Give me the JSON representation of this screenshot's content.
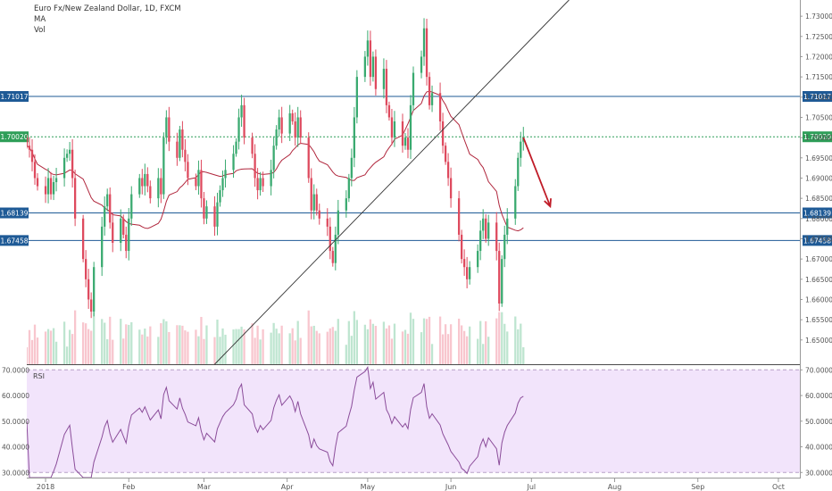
{
  "chart_data": {
    "type": "candlestick",
    "header": {
      "title": "Euro Fx/New Zealand Dollar, 1D, FXCM",
      "indicators": [
        "MA",
        "Vol"
      ]
    },
    "price_axis": {
      "ylim": [
        1.644,
        1.734
      ],
      "ticks": [
        1.65,
        1.655,
        1.66,
        1.665,
        1.67,
        1.675,
        1.68,
        1.685,
        1.69,
        1.695,
        1.7,
        1.705,
        1.71,
        1.715,
        1.72,
        1.725,
        1.73
      ],
      "tick_labels": [
        "1.65000",
        "1.65500",
        "1.66000",
        "1.66500",
        "1.67000",
        "1.67500",
        "1.68000",
        "1.68500",
        "1.69000",
        "1.69500",
        "1.70000",
        "1.70500",
        "1.71000",
        "1.71500",
        "1.72000",
        "1.72500",
        "1.73000"
      ]
    },
    "horizontal_levels": [
      {
        "value": 1.71017,
        "label": "1.71017",
        "style": "solid",
        "color": "#1e5a96"
      },
      {
        "value": 1.68139,
        "label": "1.68139",
        "style": "solid",
        "color": "#1e5a96"
      },
      {
        "value": 1.67458,
        "label": "1.67458",
        "style": "solid",
        "color": "#1e5a96"
      },
      {
        "value": 1.7002,
        "label": "1.70020",
        "style": "dotted",
        "color": "#2e9e58"
      }
    ],
    "trendline": {
      "from": [
        "2018-03-05",
        1.644
      ],
      "to": [
        "2018-07-15",
        1.734
      ]
    },
    "arrow": {
      "from": [
        "2018-06-28",
        1.7
      ],
      "to": [
        "2018-07-08",
        1.683
      ],
      "color": "#c01c28"
    },
    "time_axis": {
      "labels": [
        "2018",
        "Feb",
        "Mar",
        "Apr",
        "May",
        "Jun",
        "Jul",
        "Aug",
        "Sep",
        "Oct"
      ],
      "dates": [
        "2018-01-01",
        "2018-02-01",
        "2018-03-01",
        "2018-04-01",
        "2018-05-01",
        "2018-06-01",
        "2018-07-01",
        "2018-08-01",
        "2018-09-01",
        "2018-10-01"
      ],
      "start": "2017-12-25",
      "end": "2018-10-09"
    },
    "candles": [
      {
        "date": "2017-12-25",
        "close": 1.698
      },
      {
        "date": "2017-12-26",
        "close": 1.697
      },
      {
        "date": "2017-12-27",
        "close": 1.694
      },
      {
        "date": "2017-12-28",
        "close": 1.69
      },
      {
        "date": "2017-12-29",
        "close": 1.688
      },
      {
        "date": "2018-01-01",
        "close": 1.686
      },
      {
        "date": "2018-01-02",
        "close": 1.69
      },
      {
        "date": "2018-01-03",
        "close": 1.686
      },
      {
        "date": "2018-01-04",
        "close": 1.689
      },
      {
        "date": "2018-01-05",
        "close": 1.69
      },
      {
        "date": "2018-01-08",
        "close": 1.695
      },
      {
        "date": "2018-01-09",
        "close": 1.696
      },
      {
        "date": "2018-01-10",
        "close": 1.697
      },
      {
        "date": "2018-01-11",
        "close": 1.69
      },
      {
        "date": "2018-01-12",
        "close": 1.68
      },
      {
        "date": "2018-01-15",
        "close": 1.67
      },
      {
        "date": "2018-01-16",
        "close": 1.665
      },
      {
        "date": "2018-01-17",
        "close": 1.66
      },
      {
        "date": "2018-01-18",
        "close": 1.657
      },
      {
        "date": "2018-01-19",
        "close": 1.668
      },
      {
        "date": "2018-01-22",
        "close": 1.678
      },
      {
        "date": "2018-01-23",
        "close": 1.683
      },
      {
        "date": "2018-01-24",
        "close": 1.686
      },
      {
        "date": "2018-01-25",
        "close": 1.679
      },
      {
        "date": "2018-01-26",
        "close": 1.674
      },
      {
        "date": "2018-01-29",
        "close": 1.68
      },
      {
        "date": "2018-01-30",
        "close": 1.676
      },
      {
        "date": "2018-01-31",
        "close": 1.672
      },
      {
        "date": "2018-02-01",
        "close": 1.68
      },
      {
        "date": "2018-02-02",
        "close": 1.686
      },
      {
        "date": "2018-02-05",
        "close": 1.69
      },
      {
        "date": "2018-02-06",
        "close": 1.688
      },
      {
        "date": "2018-02-07",
        "close": 1.691
      },
      {
        "date": "2018-02-08",
        "close": 1.688
      },
      {
        "date": "2018-02-09",
        "close": 1.685
      },
      {
        "date": "2018-02-12",
        "close": 1.69
      },
      {
        "date": "2018-02-13",
        "close": 1.686
      },
      {
        "date": "2018-02-14",
        "close": 1.7
      },
      {
        "date": "2018-02-15",
        "close": 1.705
      },
      {
        "date": "2018-02-16",
        "close": 1.699
      },
      {
        "date": "2018-02-19",
        "close": 1.695
      },
      {
        "date": "2018-02-20",
        "close": 1.702
      },
      {
        "date": "2018-02-21",
        "close": 1.697
      },
      {
        "date": "2018-02-22",
        "close": 1.694
      },
      {
        "date": "2018-02-23",
        "close": 1.69
      },
      {
        "date": "2018-02-26",
        "close": 1.688
      },
      {
        "date": "2018-02-27",
        "close": 1.692
      },
      {
        "date": "2018-02-28",
        "close": 1.685
      },
      {
        "date": "2018-03-01",
        "close": 1.68
      },
      {
        "date": "2018-03-02",
        "close": 1.683
      },
      {
        "date": "2018-03-05",
        "close": 1.678
      },
      {
        "date": "2018-03-06",
        "close": 1.684
      },
      {
        "date": "2018-03-07",
        "close": 1.687
      },
      {
        "date": "2018-03-08",
        "close": 1.69
      },
      {
        "date": "2018-03-09",
        "close": 1.692
      },
      {
        "date": "2018-03-12",
        "close": 1.696
      },
      {
        "date": "2018-03-13",
        "close": 1.699
      },
      {
        "date": "2018-03-14",
        "close": 1.705
      },
      {
        "date": "2018-03-15",
        "close": 1.708
      },
      {
        "date": "2018-03-16",
        "close": 1.7
      },
      {
        "date": "2018-03-19",
        "close": 1.696
      },
      {
        "date": "2018-03-20",
        "close": 1.69
      },
      {
        "date": "2018-03-21",
        "close": 1.687
      },
      {
        "date": "2018-03-22",
        "close": 1.69
      },
      {
        "date": "2018-03-23",
        "close": 1.688
      },
      {
        "date": "2018-03-26",
        "close": 1.692
      },
      {
        "date": "2018-03-27",
        "close": 1.698
      },
      {
        "date": "2018-03-28",
        "close": 1.702
      },
      {
        "date": "2018-03-29",
        "close": 1.705
      },
      {
        "date": "2018-03-30",
        "close": 1.701
      },
      {
        "date": "2018-04-02",
        "close": 1.706
      },
      {
        "date": "2018-04-03",
        "close": 1.704
      },
      {
        "date": "2018-04-04",
        "close": 1.7
      },
      {
        "date": "2018-04-05",
        "close": 1.705
      },
      {
        "date": "2018-04-06",
        "close": 1.7
      },
      {
        "date": "2018-04-09",
        "close": 1.69
      },
      {
        "date": "2018-04-10",
        "close": 1.682
      },
      {
        "date": "2018-04-11",
        "close": 1.686
      },
      {
        "date": "2018-04-12",
        "close": 1.682
      },
      {
        "date": "2018-04-13",
        "close": 1.68
      },
      {
        "date": "2018-04-16",
        "close": 1.678
      },
      {
        "date": "2018-04-17",
        "close": 1.672
      },
      {
        "date": "2018-04-18",
        "close": 1.669
      },
      {
        "date": "2018-04-19",
        "close": 1.676
      },
      {
        "date": "2018-04-20",
        "close": 1.682
      },
      {
        "date": "2018-04-23",
        "close": 1.685
      },
      {
        "date": "2018-04-24",
        "close": 1.69
      },
      {
        "date": "2018-04-25",
        "close": 1.695
      },
      {
        "date": "2018-04-26",
        "close": 1.705
      },
      {
        "date": "2018-04-27",
        "close": 1.715
      },
      {
        "date": "2018-04-30",
        "close": 1.72
      },
      {
        "date": "2018-05-01",
        "close": 1.724
      },
      {
        "date": "2018-05-02",
        "close": 1.715
      },
      {
        "date": "2018-05-03",
        "close": 1.72
      },
      {
        "date": "2018-05-04",
        "close": 1.712
      },
      {
        "date": "2018-05-07",
        "close": 1.717
      },
      {
        "date": "2018-05-08",
        "close": 1.708
      },
      {
        "date": "2018-05-09",
        "close": 1.705
      },
      {
        "date": "2018-05-10",
        "close": 1.7
      },
      {
        "date": "2018-05-11",
        "close": 1.704
      },
      {
        "date": "2018-05-14",
        "close": 1.698
      },
      {
        "date": "2018-05-15",
        "close": 1.7
      },
      {
        "date": "2018-05-16",
        "close": 1.697
      },
      {
        "date": "2018-05-17",
        "close": 1.708
      },
      {
        "date": "2018-05-18",
        "close": 1.716
      },
      {
        "date": "2018-05-21",
        "close": 1.72
      },
      {
        "date": "2018-05-22",
        "close": 1.727
      },
      {
        "date": "2018-05-23",
        "close": 1.715
      },
      {
        "date": "2018-05-24",
        "close": 1.708
      },
      {
        "date": "2018-05-25",
        "close": 1.711
      },
      {
        "date": "2018-05-28",
        "close": 1.704
      },
      {
        "date": "2018-05-29",
        "close": 1.698
      },
      {
        "date": "2018-05-30",
        "close": 1.694
      },
      {
        "date": "2018-05-31",
        "close": 1.69
      },
      {
        "date": "2018-06-01",
        "close": 1.685
      },
      {
        "date": "2018-06-04",
        "close": 1.676
      },
      {
        "date": "2018-06-05",
        "close": 1.67
      },
      {
        "date": "2018-06-06",
        "close": 1.668
      },
      {
        "date": "2018-06-07",
        "close": 1.665
      },
      {
        "date": "2018-06-08",
        "close": 1.668
      },
      {
        "date": "2018-06-11",
        "close": 1.672
      },
      {
        "date": "2018-06-12",
        "close": 1.677
      },
      {
        "date": "2018-06-13",
        "close": 1.68
      },
      {
        "date": "2018-06-14",
        "close": 1.675
      },
      {
        "date": "2018-06-15",
        "close": 1.679
      },
      {
        "date": "2018-06-18",
        "close": 1.672
      },
      {
        "date": "2018-06-19",
        "close": 1.659
      },
      {
        "date": "2018-06-20",
        "close": 1.67
      },
      {
        "date": "2018-06-21",
        "close": 1.676
      },
      {
        "date": "2018-06-22",
        "close": 1.68
      },
      {
        "date": "2018-06-25",
        "close": 1.688
      },
      {
        "date": "2018-06-26",
        "close": 1.695
      },
      {
        "date": "2018-06-27",
        "close": 1.699
      },
      {
        "date": "2018-06-28",
        "close": 1.7002
      }
    ],
    "rsi": {
      "label": "RSI",
      "ylim": [
        28,
        71.5
      ],
      "ticks": [
        30,
        40,
        50,
        60,
        70
      ],
      "tick_labels": [
        "30.0000",
        "40.0000",
        "50.0000",
        "60.0000",
        "70.0000"
      ],
      "overbought": 70,
      "oversold": 30
    }
  }
}
